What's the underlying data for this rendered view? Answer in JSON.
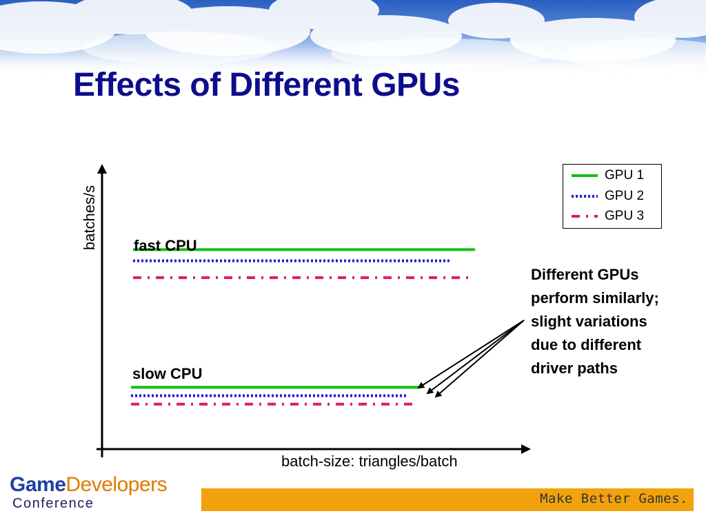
{
  "title": "Effects of Different GPUs",
  "colors": {
    "title": "#0d0d8c",
    "gpu1": "#11c011",
    "gpu2": "#1a1adb",
    "gpu3": "#e0204a",
    "footer_bar": "#f2a20c"
  },
  "chart_data": {
    "type": "line",
    "xlabel": "batch-size: triangles/batch",
    "ylabel": "batches/s",
    "legend_position": "top-right",
    "legend": [
      "GPU 1",
      "GPU 2",
      "GPU 3"
    ],
    "groups": [
      {
        "label": "fast CPU",
        "series": [
          {
            "name": "GPU 1",
            "style": "solid",
            "level": 0.71,
            "x_end": 0.87
          },
          {
            "name": "GPU 2",
            "style": "dotted",
            "level": 0.67,
            "x_end": 0.81
          },
          {
            "name": "GPU 3",
            "style": "dash-dot",
            "level": 0.61,
            "x_end": 0.86
          }
        ]
      },
      {
        "label": "slow CPU",
        "series": [
          {
            "name": "GPU 1",
            "style": "solid",
            "level": 0.22,
            "x_end": 0.74
          },
          {
            "name": "GPU 2",
            "style": "dotted",
            "level": 0.19,
            "x_end": 0.71
          },
          {
            "name": "GPU 3",
            "style": "dash-dot",
            "level": 0.16,
            "x_end": 0.73
          }
        ]
      }
    ]
  },
  "annotation": "Different GPUs\nperform similarly;\nslight variations\ndue to different\ndriver paths",
  "footer": {
    "logo_game": "Game",
    "logo_developers": "Developers",
    "logo_conference": "Conference",
    "tagline": "Make Better Games."
  }
}
